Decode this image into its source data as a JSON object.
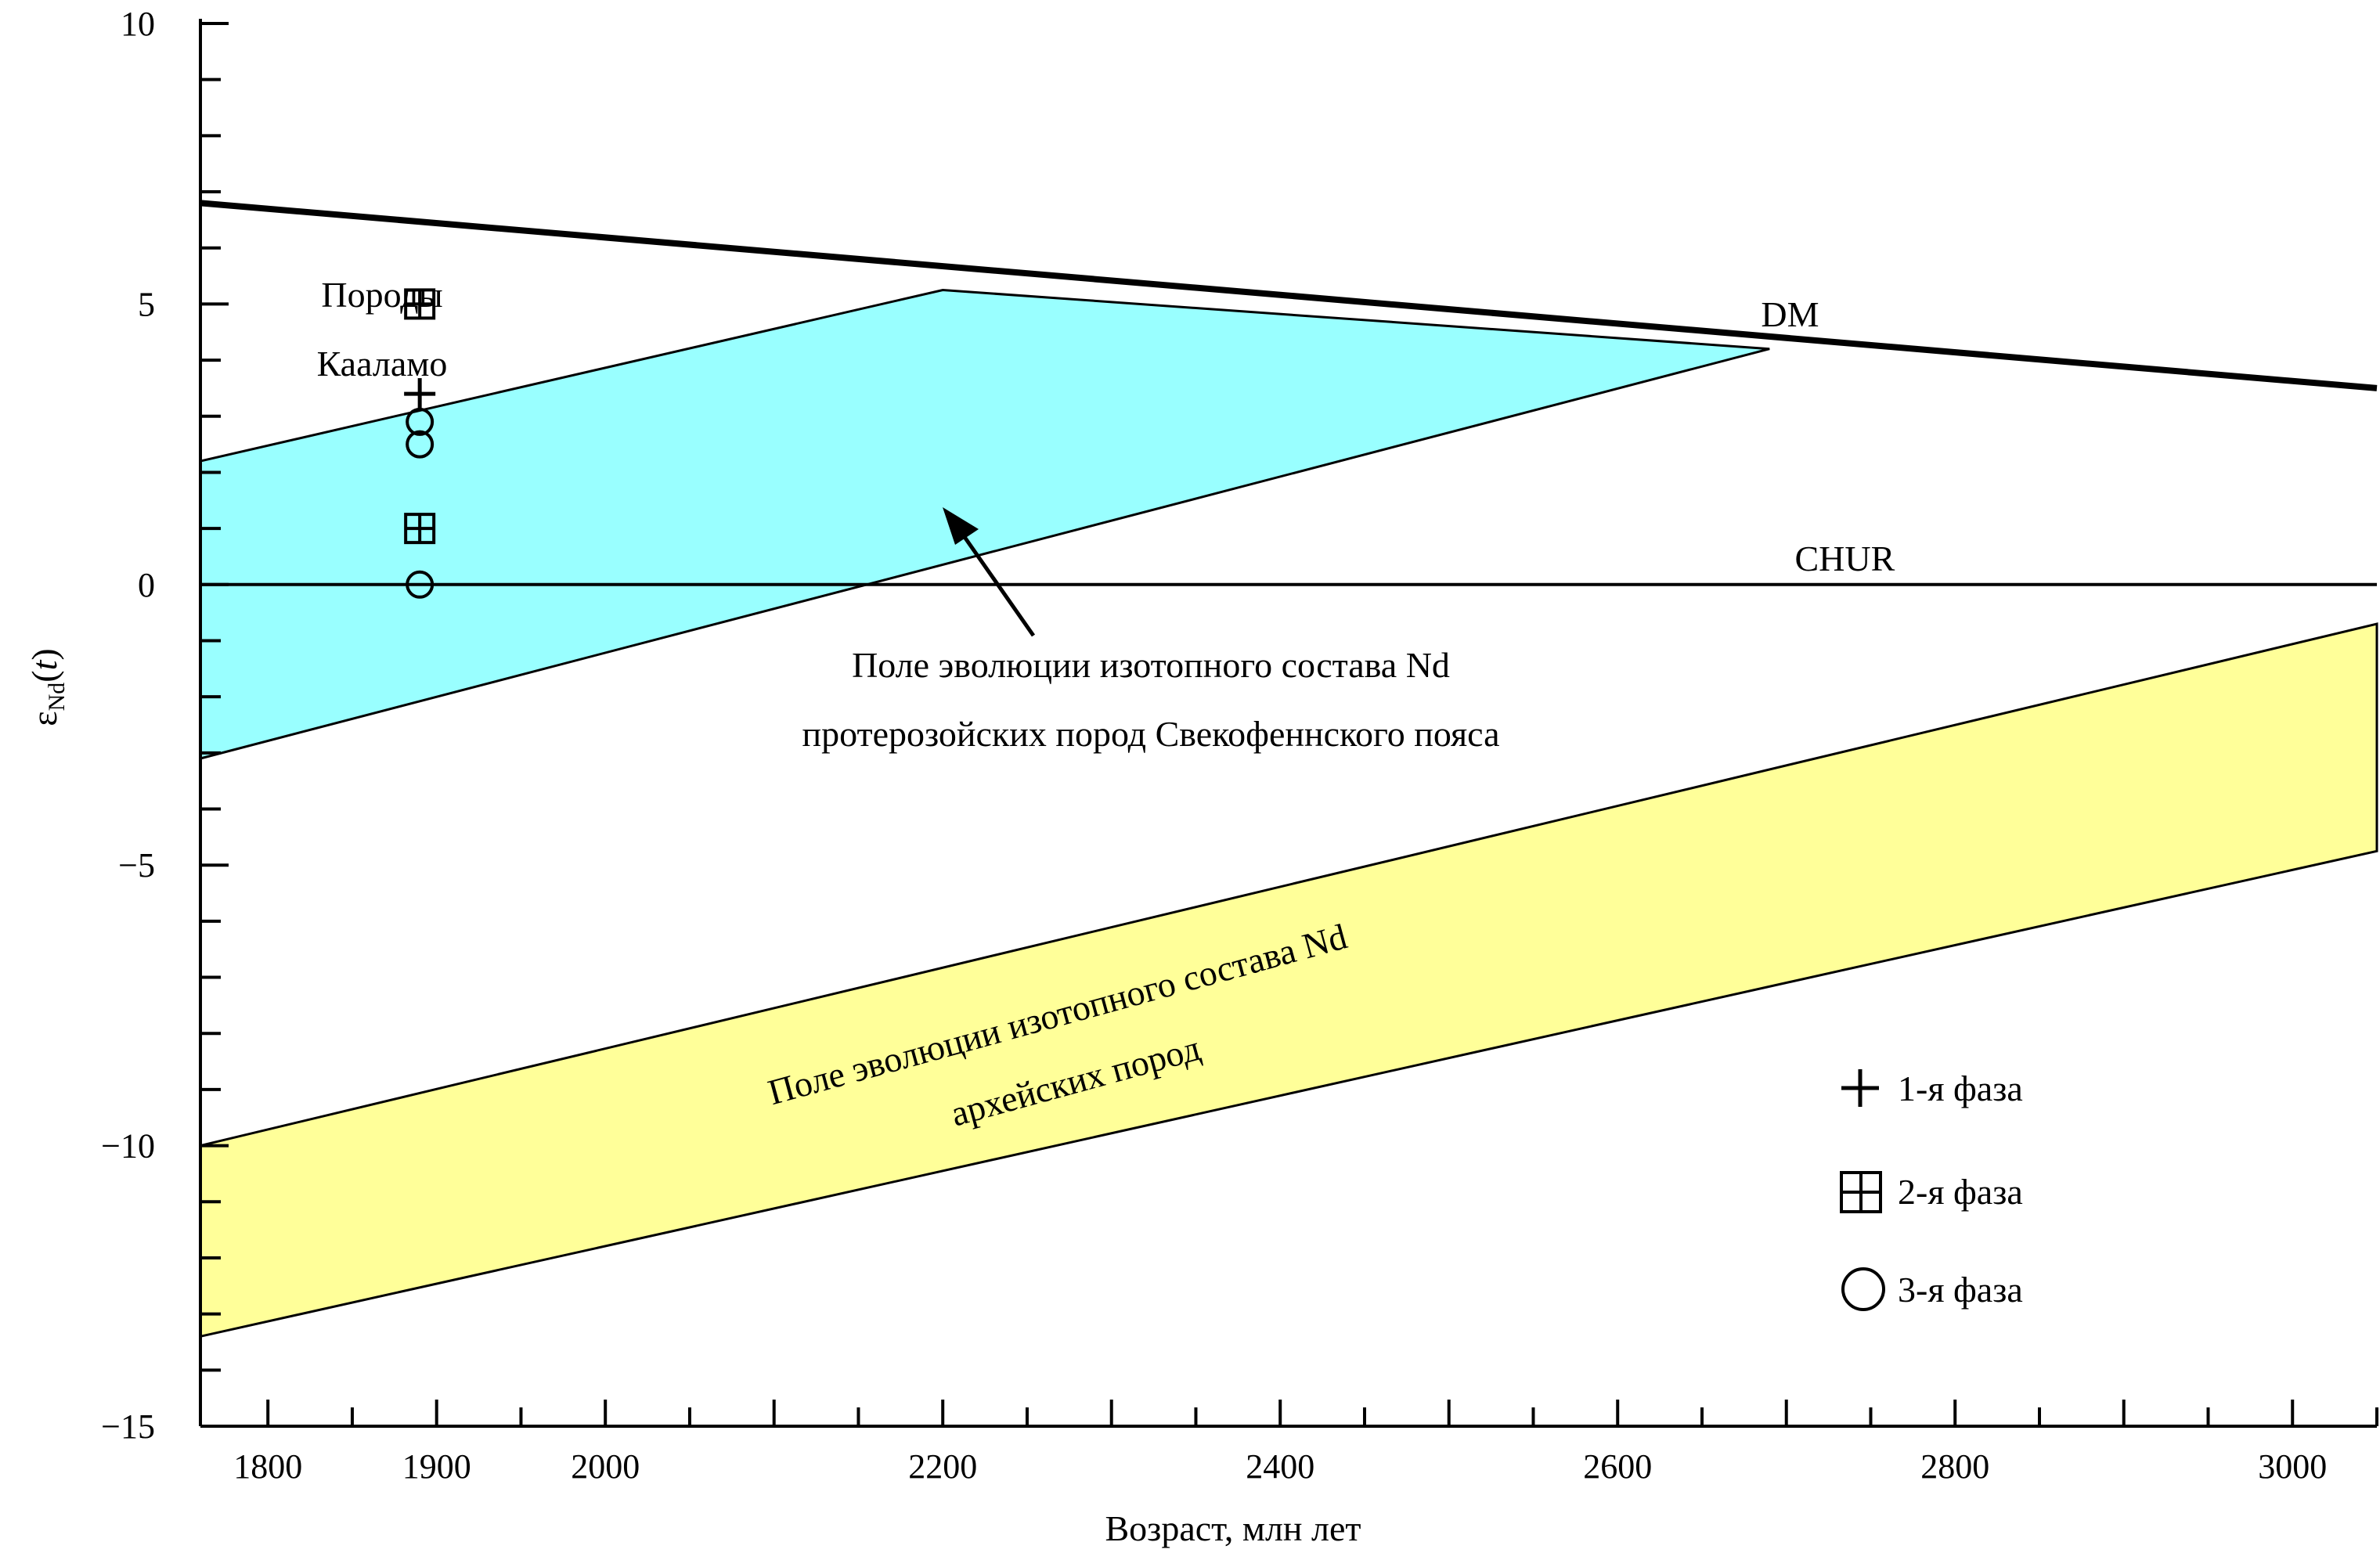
{
  "chart_data": {
    "type": "line",
    "xlabel": "Возраст, млн лет",
    "ylabel_main": "ε",
    "ylabel_sub": "Nd",
    "ylabel_suffix_open": "(",
    "ylabel_var": "t",
    "ylabel_suffix_close": ")",
    "xlim": [
      1760,
      3050
    ],
    "ylim": [
      -15,
      10
    ],
    "x_ticks": [
      1800,
      1900,
      2000,
      2200,
      2400,
      2600,
      2800,
      3000
    ],
    "x_tick_labels": [
      "1800",
      "1900",
      "2000",
      "2200",
      "2400",
      "2600",
      "2800",
      "3000"
    ],
    "x_minor_step": 50,
    "y_ticks": [
      10,
      5,
      0,
      -5,
      -10,
      -15
    ],
    "y_tick_labels": [
      "10",
      "5",
      "0",
      "−5",
      "−10",
      "−15"
    ],
    "y_minor_step": 1,
    "lines": [
      {
        "name": "DM",
        "points": [
          [
            1760,
            6.8
          ],
          [
            3050,
            3.5
          ]
        ],
        "label": "DM",
        "label_pos": [
          2685,
          4.6
        ]
      },
      {
        "name": "CHUR",
        "points": [
          [
            1760,
            0
          ],
          [
            3050,
            0
          ]
        ],
        "label": "CHUR",
        "label_pos": [
          2705,
          0.25
        ]
      }
    ],
    "fields": [
      {
        "id": "proterozoic",
        "color": "#99ffff",
        "polygon": [
          [
            1760,
            2.2
          ],
          [
            2200,
            5.25
          ],
          [
            2690,
            4.2
          ],
          [
            1760,
            -3.1
          ]
        ],
        "label_lines": [
          "Поле эволюции изотопного состава Nd",
          "протерозойских пород Свекофеннского пояса"
        ]
      },
      {
        "id": "archean",
        "color": "#ffff99",
        "polygon": [
          [
            1760,
            -10.0
          ],
          [
            3050,
            -0.7
          ],
          [
            3050,
            -4.75
          ],
          [
            1760,
            -13.4
          ]
        ],
        "label_lines": [
          "Поле эволюции изотопного состава Nd",
          "архейских пород"
        ]
      }
    ],
    "series": [
      {
        "name": "1-я фаза",
        "marker": "plus",
        "points": [
          [
            1890,
            3.4
          ]
        ]
      },
      {
        "name": "2-я фаза",
        "marker": "boxplus",
        "points": [
          [
            1890,
            5.0
          ],
          [
            1890,
            1.0
          ]
        ]
      },
      {
        "name": "3-я фаза",
        "marker": "circle",
        "points": [
          [
            1890,
            2.9
          ],
          [
            1890,
            2.5
          ],
          [
            1890,
            0.0
          ]
        ]
      }
    ],
    "annotations": {
      "rocks_label": [
        "Породы",
        "Кааламо"
      ]
    },
    "legend": {
      "placement": "bottom-right",
      "items": [
        {
          "marker": "plus",
          "label": "1-я фаза"
        },
        {
          "marker": "boxplus",
          "label": "2-я фаза"
        },
        {
          "marker": "circle",
          "label": "3-я фаза"
        }
      ]
    }
  }
}
